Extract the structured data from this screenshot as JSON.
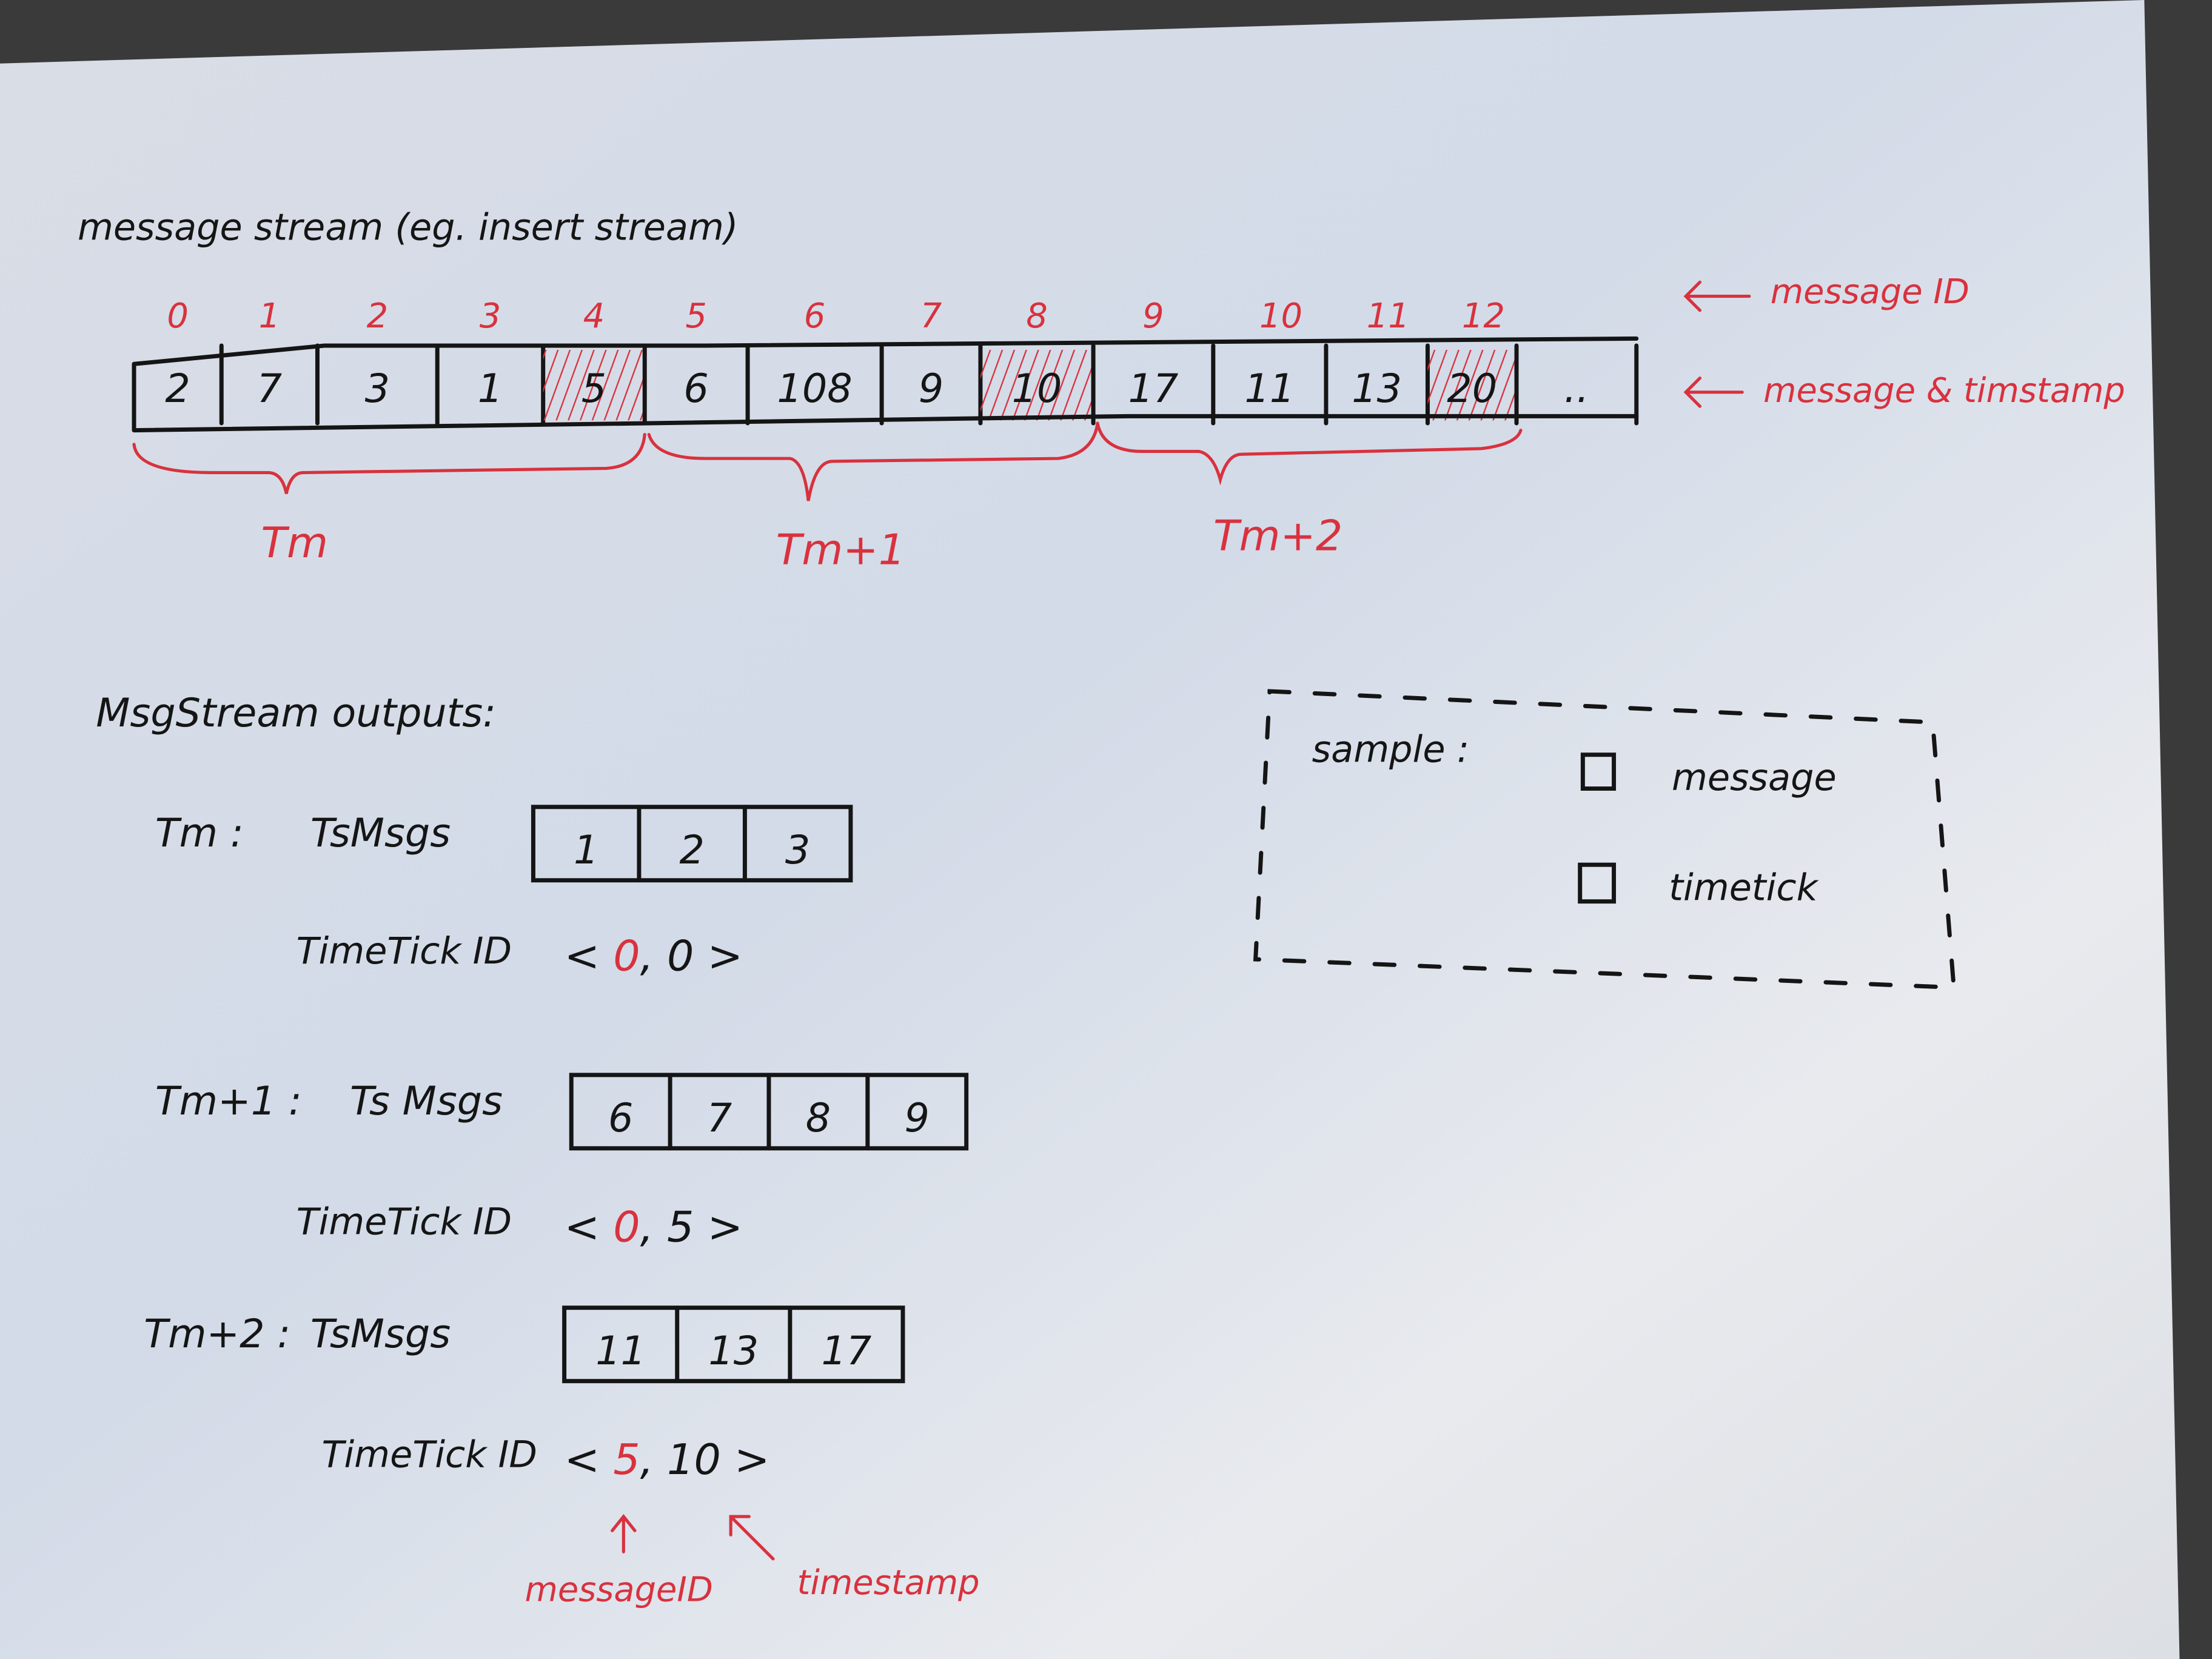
{
  "title": "message stream (eg. insert stream)",
  "stream": {
    "message_ids": [
      "0",
      "1",
      "2",
      "3",
      "4",
      "5",
      "6",
      "7",
      "8",
      "9",
      "10",
      "11",
      "12"
    ],
    "values": [
      "2",
      "7",
      "3",
      "1",
      "5",
      "6",
      "108",
      "9",
      "10",
      "17",
      "11",
      "13",
      "20",
      ".."
    ],
    "timetick_indices": [
      4,
      8,
      12
    ],
    "id_annotation": "message ID",
    "value_annotation": "message & timstamp",
    "groups": [
      "Tm",
      "Tm+1",
      "Tm+2"
    ]
  },
  "outputs": {
    "heading": "MsgStream outputs:",
    "items": [
      {
        "label": "Tm :",
        "msgs_label": "TsMsgs",
        "msgs": [
          "1",
          "2",
          "3"
        ],
        "tick_label": "TimeTick ID",
        "tick_id": "0",
        "tick_ts": "0"
      },
      {
        "label": "Tm+1 :",
        "msgs_label": "Ts Msgs",
        "msgs": [
          "6",
          "7",
          "8",
          "9"
        ],
        "tick_label": "TimeTick ID",
        "tick_id": "0",
        "tick_ts": "5"
      },
      {
        "label": "Tm+2 :",
        "msgs_label": "TsMsgs",
        "msgs": [
          "11",
          "13",
          "17"
        ],
        "tick_label": "TimeTick ID",
        "tick_id": "5",
        "tick_ts": "10"
      }
    ],
    "arrow_labels": {
      "id": "messageID",
      "ts": "timestamp"
    }
  },
  "legend": {
    "title": "sample :",
    "message": "message",
    "timetick": "timetick"
  },
  "colors": {
    "ink": "#151515",
    "red": "#d8323e",
    "paper": "#dfe4ec"
  }
}
